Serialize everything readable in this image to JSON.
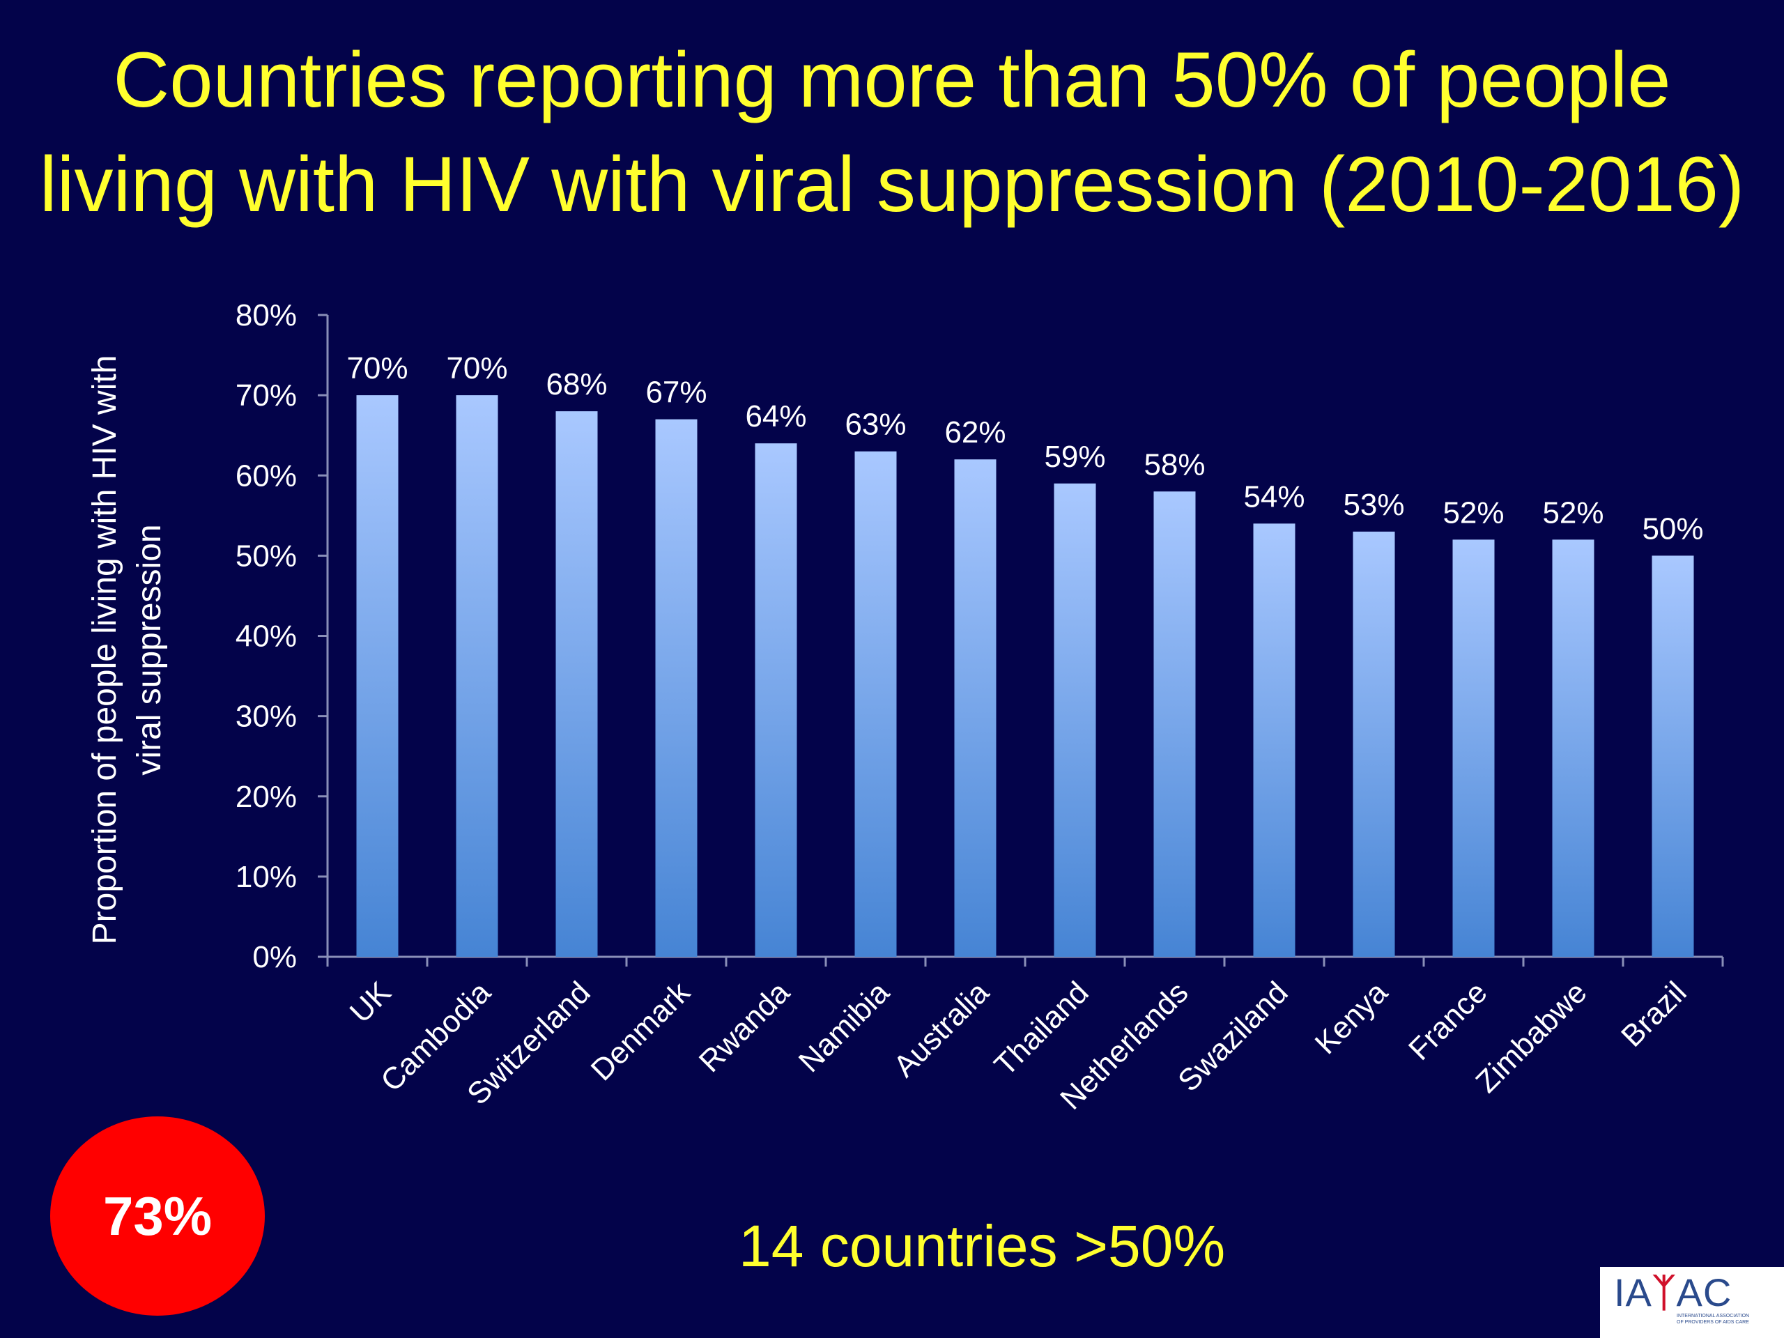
{
  "title": {
    "line1": "Countries reporting more than 50% of people",
    "line2": "living with HIV with viral suppression (2010-2016)"
  },
  "chart_data": {
    "type": "bar",
    "categories": [
      "UK",
      "Cambodia",
      "Switzerland",
      "Denmark",
      "Rwanda",
      "Namibia",
      "Australia",
      "Thailand",
      "Netherlands",
      "Swaziland",
      "Kenya",
      "France",
      "Zimbabwe",
      "Brazil"
    ],
    "values": [
      70,
      70,
      68,
      67,
      64,
      63,
      62,
      59,
      58,
      54,
      53,
      52,
      52,
      50
    ],
    "value_labels": [
      "70%",
      "70%",
      "68%",
      "67%",
      "64%",
      "63%",
      "62%",
      "59%",
      "58%",
      "54%",
      "53%",
      "52%",
      "52%",
      "50%"
    ],
    "ylabel": "Proportion of people living with HIV with viral suppression",
    "ylim": [
      0,
      80
    ],
    "yticks": [
      "0%",
      "10%",
      "20%",
      "30%",
      "40%",
      "50%",
      "60%",
      "70%",
      "80%"
    ],
    "grid": false,
    "bar_color_top": "#a9c8ff",
    "bar_color_bottom": "#4684d4"
  },
  "footer_note": "14 countries >50%",
  "badge": {
    "text": "73%",
    "color": "#ff0000"
  },
  "logo": {
    "word_left": "IA",
    "word_mark": "ᛉ",
    "word_right": "AC",
    "subtitle_line1": "INTERNATIONAL ASSOCIATION",
    "subtitle_line2": "OF PROVIDERS OF AIDS CARE"
  }
}
